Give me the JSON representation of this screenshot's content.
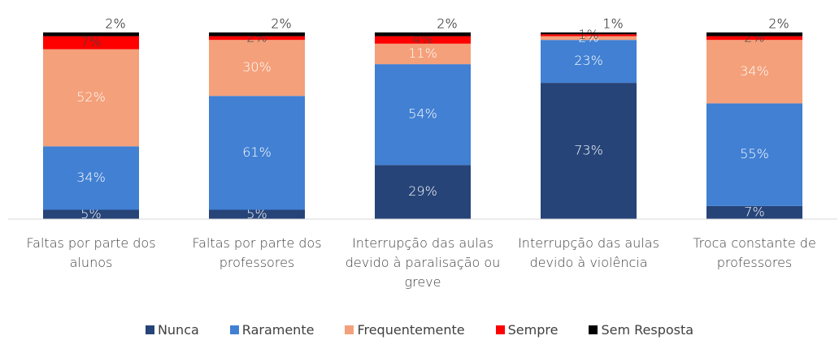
{
  "chart_data": {
    "type": "bar",
    "stacked": true,
    "categories": [
      "Faltas por parte dos alunos",
      "Faltas por parte dos professores",
      "Interrupção das aulas devido à paralisação ou greve",
      "Interrupção das aulas devido à violência",
      "Troca constante de professores"
    ],
    "series": [
      {
        "name": "Nunca",
        "color": "#264478",
        "values": [
          5,
          5,
          29,
          73,
          7
        ],
        "value_labels": [
          "5%",
          "5%",
          "29%",
          "73%",
          "7%"
        ]
      },
      {
        "name": "Raramente",
        "color": "#4180d3",
        "values": [
          34,
          61,
          54,
          23,
          55
        ],
        "value_labels": [
          "34%",
          "61%",
          "54%",
          "23%",
          "55%"
        ]
      },
      {
        "name": "Frequentemente",
        "color": "#f4a07a",
        "values": [
          52,
          30,
          11,
          2,
          34
        ],
        "value_labels": [
          "52%",
          "30%",
          "11%",
          "2%",
          "34%"
        ]
      },
      {
        "name": "Sempre",
        "color": "#ff0000",
        "values": [
          7,
          2,
          4,
          1,
          2
        ],
        "value_labels": [
          "7%",
          "2%",
          "4%",
          "1%",
          "2%"
        ]
      },
      {
        "name": "Sem Resposta",
        "color": "#000000",
        "values": [
          2,
          2,
          2,
          1,
          2
        ],
        "value_labels": [
          "2%",
          "2%",
          "2%",
          "1%",
          "2%"
        ]
      }
    ],
    "ylim": [
      0,
      100
    ]
  }
}
